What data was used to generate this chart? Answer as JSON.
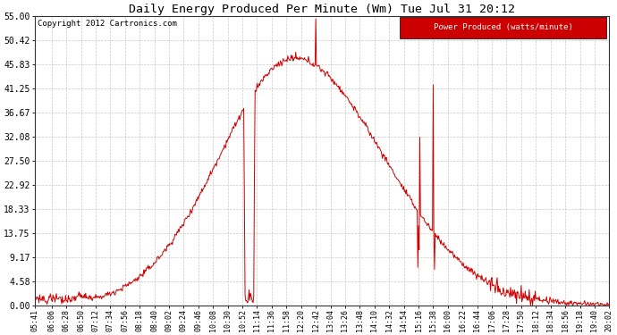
{
  "title": "Daily Energy Produced Per Minute (Wm) Tue Jul 31 20:12",
  "copyright": "Copyright 2012 Cartronics.com",
  "legend_label": "Power Produced (watts/minute)",
  "legend_bg": "#cc0000",
  "legend_text_color": "#ffffff",
  "line_color": "#cc0000",
  "bg_color": "#ffffff",
  "grid_color": "#bbbbbb",
  "ylim": [
    0.0,
    55.0
  ],
  "yticks": [
    0.0,
    4.58,
    9.17,
    13.75,
    18.33,
    22.92,
    27.5,
    32.08,
    36.67,
    41.25,
    45.83,
    50.42,
    55.0
  ],
  "xtick_labels": [
    "05:41",
    "06:06",
    "06:28",
    "06:50",
    "07:12",
    "07:34",
    "07:56",
    "08:18",
    "08:40",
    "09:02",
    "09:24",
    "09:46",
    "10:08",
    "10:30",
    "10:52",
    "11:14",
    "11:36",
    "11:58",
    "12:20",
    "12:42",
    "13:04",
    "13:26",
    "13:48",
    "14:10",
    "14:32",
    "14:54",
    "15:16",
    "15:38",
    "16:00",
    "16:22",
    "16:44",
    "17:06",
    "17:28",
    "17:50",
    "18:12",
    "18:34",
    "18:56",
    "19:18",
    "19:40",
    "20:02"
  ],
  "peak_value": 47.0,
  "peak_time": "12:10",
  "start_time": "05:41",
  "end_time": "20:02"
}
